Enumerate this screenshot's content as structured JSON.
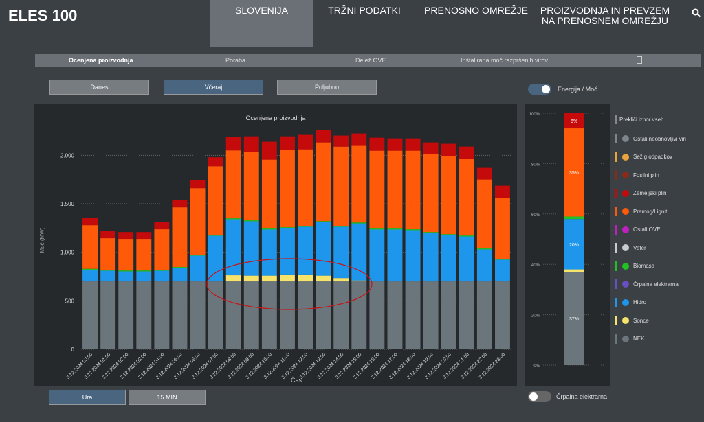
{
  "header": {
    "logo": "ELES",
    "logo_number": "100",
    "nav": [
      "SLOVENIJA",
      "TRŽNI PODATKI",
      "PRENOSNO OMREŽJE",
      "PROIZVODNJA IN PREVZEM NA PRENOSNEM OMREŽJU"
    ]
  },
  "tabs": [
    "Ocenjena proizvodnja",
    "Poraba",
    "Delež OVE",
    "Inštalirana moč razpršenih virov"
  ],
  "period_buttons": [
    "Danes",
    "Včeraj",
    "Poljubno"
  ],
  "toggle_top": {
    "left": "Energija",
    "sep": "/",
    "right": "Moč"
  },
  "resolution_buttons": [
    "Ura",
    "15 MIN"
  ],
  "toggle_bottom": "Črpalna elektrarna",
  "legend_header": "Prekliči izbor vseh",
  "legend_other": [
    {
      "name": "Ostali neobnovljivi viri",
      "color": "#7d868d"
    },
    {
      "name": "Sežig odpadkov",
      "color": "#e8a33d"
    },
    {
      "name": "Fosilni plin",
      "color": "#8b2a1a"
    },
    {
      "name": "Ostali OVE",
      "color": "#c020c0"
    },
    {
      "name": "Veter",
      "color": "#c8cccf"
    },
    {
      "name": "Črpalna elektrarna",
      "color": "#6a4fc0"
    }
  ],
  "chart_data": [
    {
      "type": "stacked-bar",
      "title": "Ocenjena proizvodnja",
      "x_label": "Čas",
      "y_label": "Moč (MW)",
      "categories": [
        "3.12.2024 00:00",
        "3.12.2024 01:00",
        "3.12.2024 02:00",
        "3.12.2024 03:00",
        "3.12.2024 04:00",
        "3.12.2024 05:00",
        "3.12.2024 06:00",
        "3.12.2024 07:00",
        "3.12.2024 08:00",
        "3.12.2024 09:00",
        "3.12.2024 10:00",
        "3.12.2024 11:00",
        "3.12.2024 12:00",
        "3.12.2024 13:00",
        "3.12.2024 14:00",
        "3.12.2024 15:00",
        "3.12.2024 16:00",
        "3.12.2024 17:00",
        "3.12.2024 18:00",
        "3.12.2024 19:00",
        "3.12.2024 20:00",
        "3.12.2024 21:00",
        "3.12.2024 22:00",
        "3.12.2024 23:00"
      ],
      "series": [
        {
          "name": "NEK",
          "color": "#6b757c",
          "values": [
            700,
            700,
            700,
            700,
            700,
            700,
            700,
            700,
            700,
            700,
            700,
            700,
            700,
            700,
            700,
            700,
            700,
            700,
            700,
            700,
            700,
            700,
            700,
            700
          ]
        },
        {
          "name": "Sonce",
          "color": "#f5e36b",
          "values": [
            0,
            0,
            0,
            0,
            0,
            0,
            0,
            0,
            64,
            60,
            60,
            65,
            65,
            60,
            35,
            10,
            0,
            0,
            0,
            0,
            0,
            0,
            0,
            0
          ]
        },
        {
          "name": "Hidro",
          "color": "#1e96eb",
          "values": [
            120,
            110,
            103,
            103,
            110,
            139,
            266,
            471,
            577,
            560,
            475,
            484,
            498,
            552,
            528,
            588,
            535,
            535,
            528,
            499,
            478,
            464,
            330,
            224
          ]
        },
        {
          "name": "Biomasa",
          "color": "#22c022",
          "values": [
            10,
            10,
            10,
            10,
            10,
            10,
            10,
            10,
            10,
            10,
            10,
            10,
            10,
            10,
            10,
            10,
            10,
            10,
            10,
            10,
            10,
            10,
            10,
            10
          ]
        },
        {
          "name": "Premog/Lignit",
          "color": "#ff5a0a",
          "values": [
            450,
            326,
            319,
            319,
            418,
            615,
            686,
            707,
            700,
            704,
            711,
            796,
            789,
            811,
            817,
            790,
            803,
            803,
            810,
            804,
            803,
            789,
            711,
            626
          ]
        },
        {
          "name": "Zemeljski plin",
          "color": "#c40a0a",
          "values": [
            78,
            77,
            77,
            77,
            77,
            78,
            85,
            92,
            141,
            162,
            184,
            141,
            149,
            127,
            114,
            127,
            134,
            127,
            127,
            120,
            128,
            127,
            120,
            127
          ]
        }
      ],
      "ylim": [
        0,
        2300
      ],
      "yticks": [
        0,
        500,
        {
          "value": 1000,
          "label": "1.000"
        },
        {
          "value": 1500,
          "label": "1.500"
        },
        {
          "value": 2000,
          "label": "2.000"
        }
      ],
      "grid": true
    },
    {
      "type": "stacked-percent-bar",
      "segments": [
        {
          "value": 37,
          "label": "37%",
          "color": "#6b757c"
        },
        {
          "value": 1,
          "color": "#f5e36b"
        },
        {
          "value": 20,
          "label": "20%",
          "color": "#1e96eb"
        },
        {
          "value": 1,
          "color": "#22c022"
        },
        {
          "value": 35,
          "label": "35%",
          "color": "#ff5a0a"
        },
        {
          "value": 6,
          "label": "6%",
          "color": "#c40a0a"
        }
      ],
      "ylim": [
        0,
        100
      ],
      "yticks": [
        {
          "value": 0,
          "label": "0%"
        },
        {
          "value": 20,
          "label": "20%"
        },
        {
          "value": 40,
          "label": "40%"
        },
        {
          "value": 60,
          "label": "60%"
        },
        {
          "value": 80,
          "label": "80%"
        },
        {
          "value": 100,
          "label": "100%"
        }
      ],
      "grid": true
    }
  ]
}
